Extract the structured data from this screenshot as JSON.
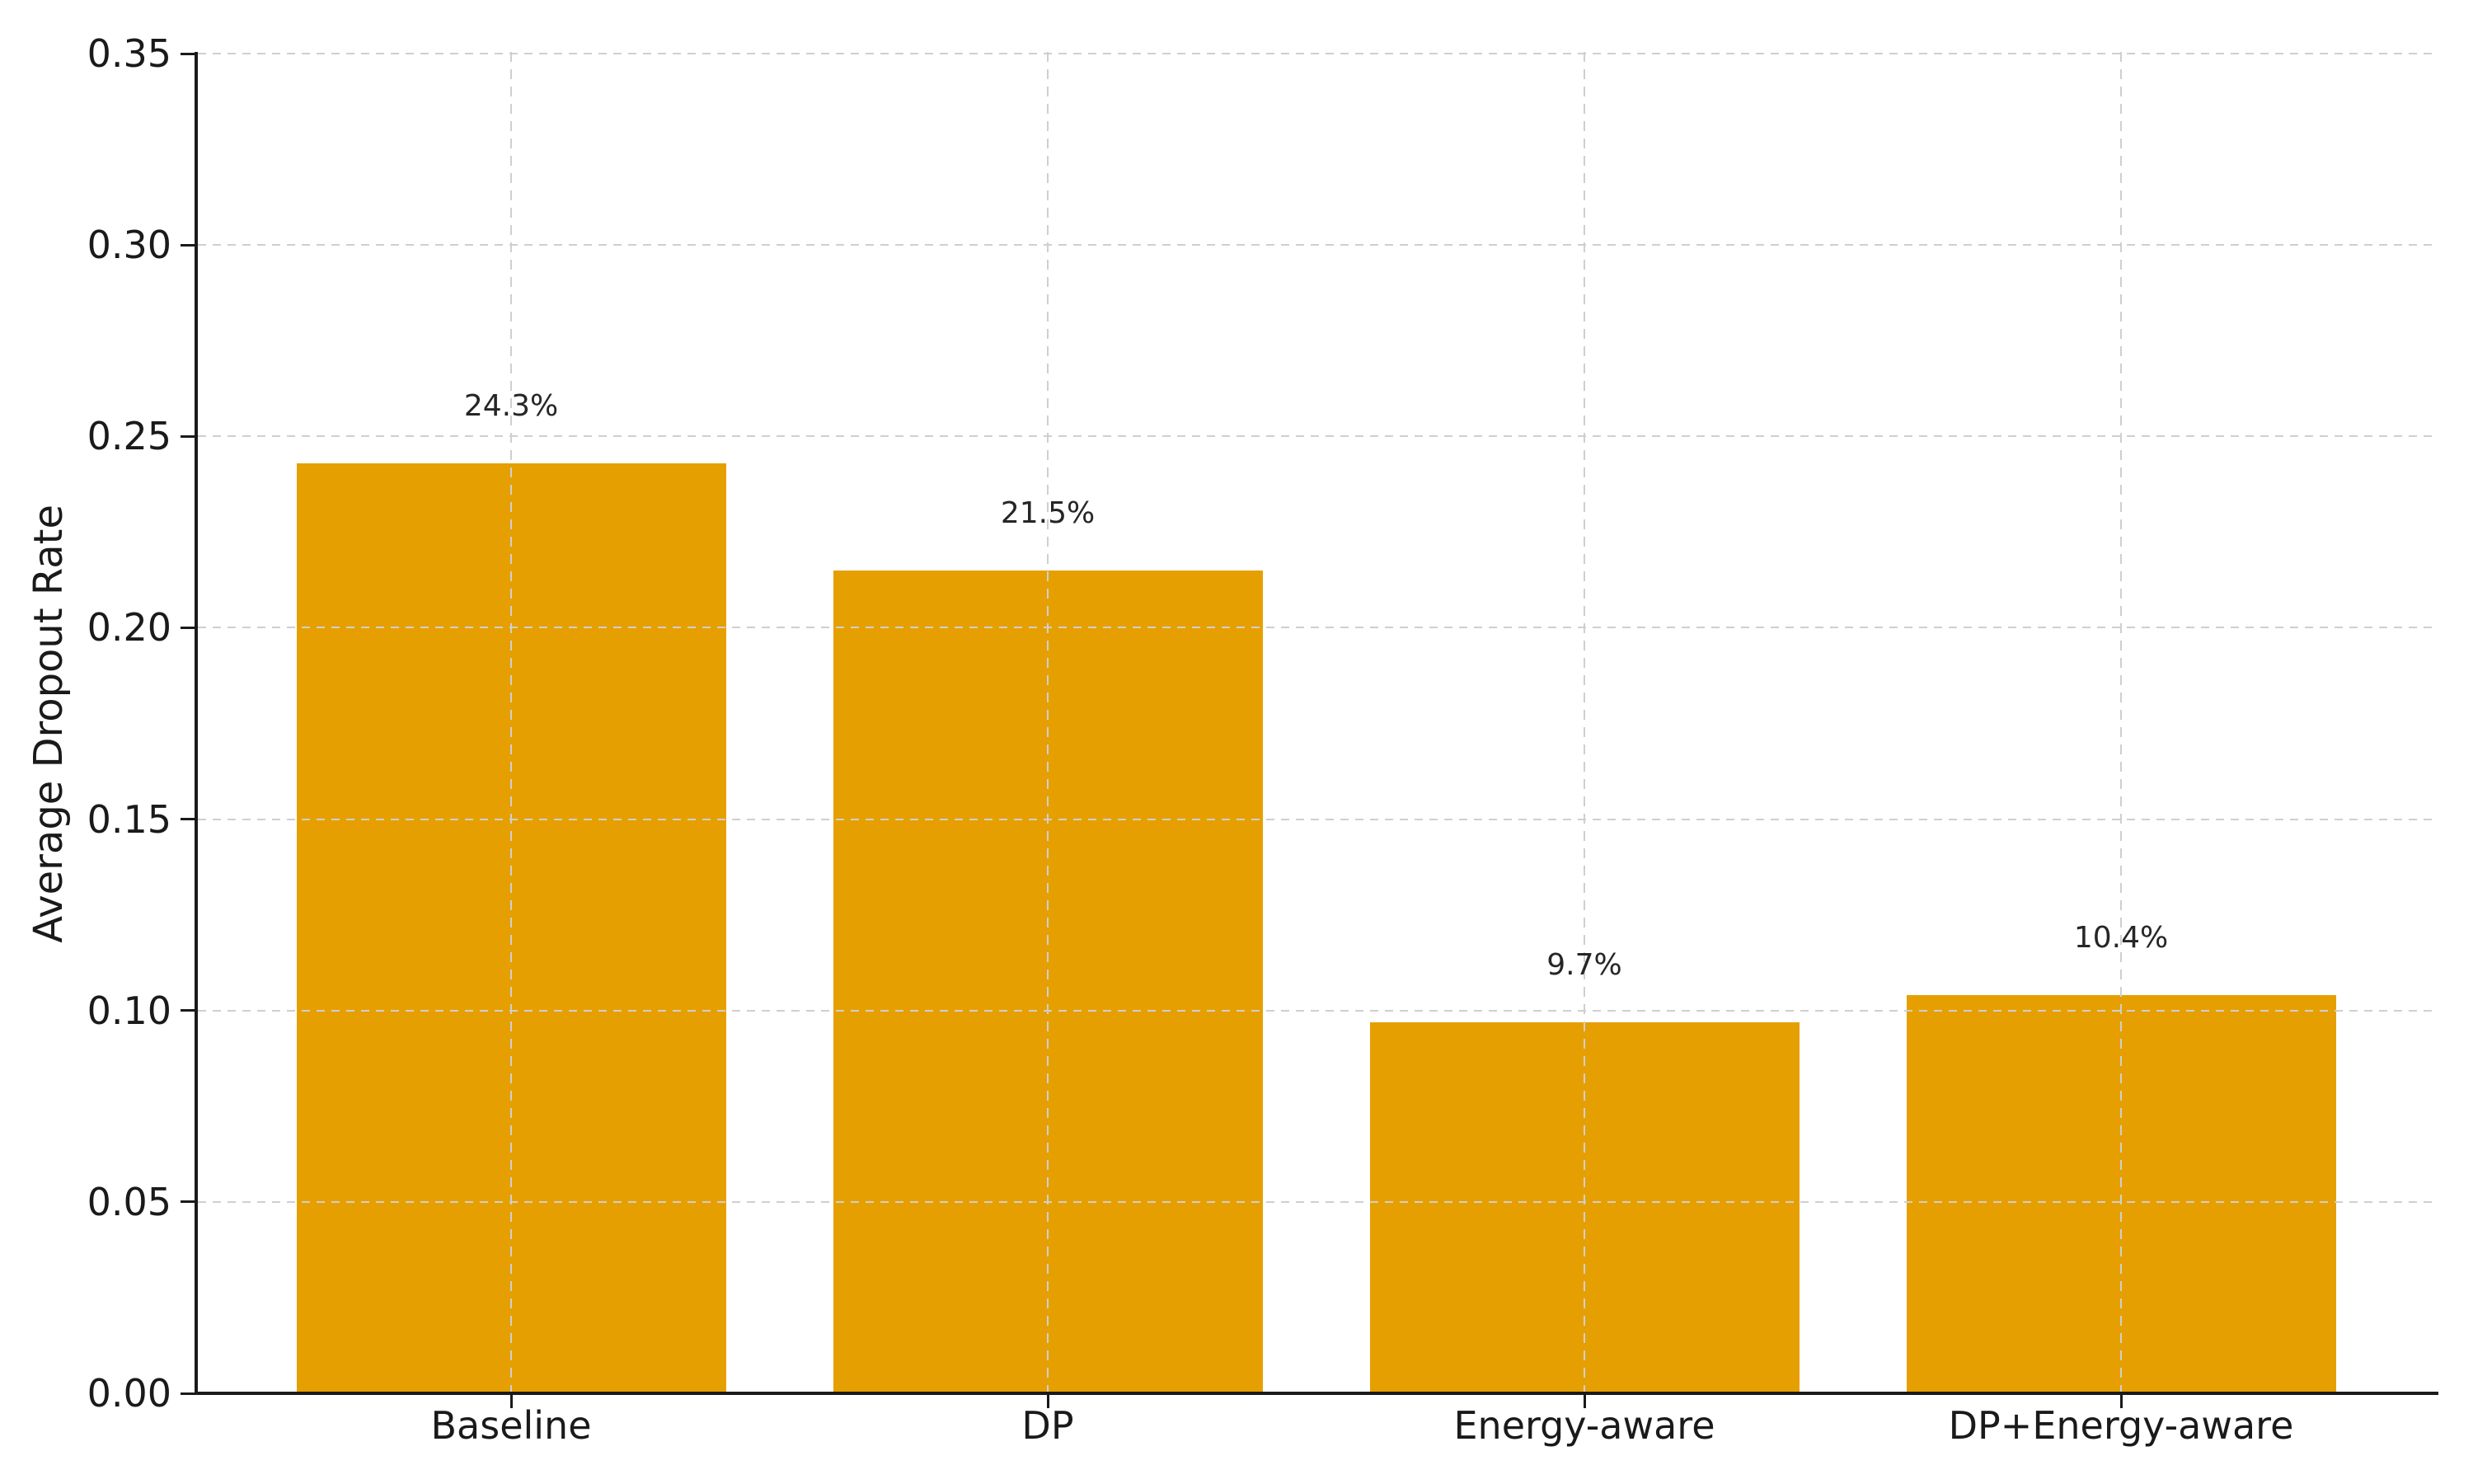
{
  "chart_data": {
    "type": "bar",
    "title": "",
    "xlabel": "",
    "ylabel": "Average Dropout Rate",
    "categories": [
      "Baseline",
      "DP",
      "Energy-aware",
      "DP+Energy-aware"
    ],
    "values": [
      0.243,
      0.215,
      0.097,
      0.104
    ],
    "bar_labels": [
      "24.3%",
      "21.5%",
      "9.7%",
      "10.4%"
    ],
    "ylim": [
      0.0,
      0.35
    ],
    "ytick_values": [
      0.0,
      0.05,
      0.1,
      0.15,
      0.2,
      0.25,
      0.3,
      0.35
    ],
    "ytick_labels": [
      "0.00",
      "0.05",
      "0.10",
      "0.15",
      "0.20",
      "0.25",
      "0.30",
      "0.35"
    ],
    "bar_color": "#E69F00",
    "grid": {
      "visible": true,
      "style": "dashed",
      "axes": "both",
      "color": "#cfcfcf",
      "above_bars": true
    },
    "axis_color": "#1a1a1a",
    "text_color": "#1a1a1a",
    "background": "#ffffff",
    "legend": "none"
  }
}
